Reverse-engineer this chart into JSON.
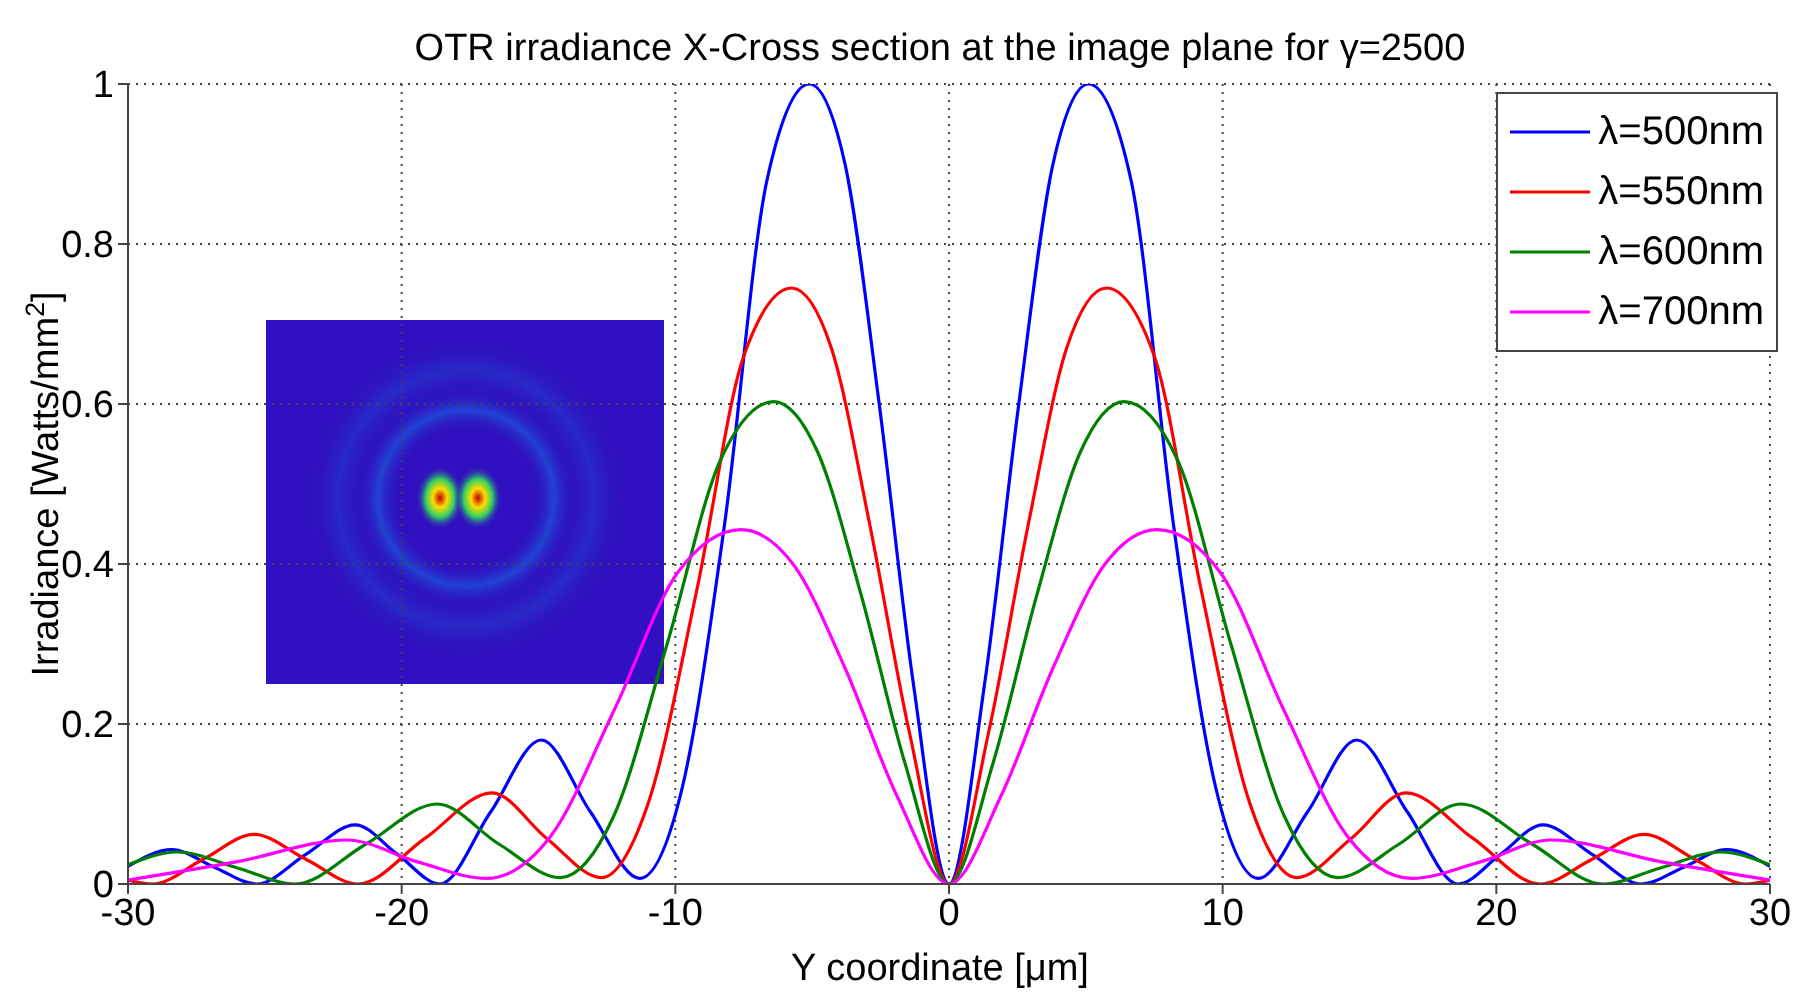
{
  "chart_data": {
    "type": "line",
    "title": "OTR irradiance X-Cross section at the image plane for γ=2500",
    "xlabel": "Y coordinate [μm]",
    "ylabel": "Irradiance [Watts/mm$^{2}$]",
    "xlim": [
      -30,
      30
    ],
    "xticks": [
      -30,
      -20,
      -10,
      0,
      10,
      20,
      30
    ],
    "ylim": [
      0,
      1
    ],
    "yticks": [
      0,
      0.2,
      0.4,
      0.6,
      0.8,
      1
    ],
    "grid": true,
    "legend": "top right",
    "marker": "none",
    "line_style": "solid",
    "series": [
      {
        "name": "λ=500nm",
        "color": "#0000ff",
        "x": [
          -30,
          -28.4,
          -26.85,
          -25.3,
          -23.5,
          -21.7,
          -20.15,
          -18.6,
          -16.75,
          -14.9,
          -13.1,
          -11.3,
          -9.75,
          -8.2,
          -6.65,
          -5.1,
          -3.8,
          -2.55,
          -1.3,
          0,
          1.3,
          2.55,
          3.8,
          5.1,
          6.65,
          8.2,
          9.75,
          11.3,
          13.1,
          14.9,
          16.75,
          18.6,
          20.15,
          21.7,
          23.5,
          25.3,
          26.85,
          28.4,
          30
        ],
        "values": [
          0.022,
          0.043,
          0.021,
          0,
          0.037,
          0.074,
          0.037,
          0,
          0.09,
          0.18,
          0.09,
          0.007,
          0.12,
          0.45,
          0.88,
          1,
          0.9,
          0.6,
          0.25,
          0,
          0.25,
          0.6,
          0.9,
          1,
          0.88,
          0.45,
          0.12,
          0.007,
          0.09,
          0.18,
          0.09,
          0,
          0.037,
          0.074,
          0.037,
          0,
          0.021,
          0.043,
          0.022
        ]
      },
      {
        "name": "λ=550nm",
        "color": "#ff0000",
        "x": [
          -30,
          -29.1,
          -27.25,
          -25.4,
          -23.5,
          -21.6,
          -19.15,
          -16.7,
          -14.7,
          -12.7,
          -11,
          -9.2,
          -7.5,
          -5.75,
          -4.3,
          -2.9,
          -1.45,
          0,
          1.45,
          2.9,
          4.3,
          5.75,
          7.5,
          9.2,
          11,
          12.7,
          14.7,
          16.7,
          19.15,
          21.6,
          23.5,
          25.4,
          27.25,
          29.1,
          30
        ],
        "values": [
          0.005,
          0,
          0.031,
          0.062,
          0.031,
          0,
          0.057,
          0.114,
          0.057,
          0.008,
          0.1,
          0.37,
          0.66,
          0.745,
          0.67,
          0.45,
          0.19,
          0,
          0.19,
          0.45,
          0.67,
          0.745,
          0.66,
          0.37,
          0.1,
          0.008,
          0.057,
          0.114,
          0.057,
          0,
          0.031,
          0.062,
          0.031,
          0,
          0.005
        ]
      },
      {
        "name": "λ=600nm",
        "color": "#008000",
        "x": [
          -30,
          -28.2,
          -26,
          -23.9,
          -21.3,
          -18.7,
          -16.45,
          -14.2,
          -12.25,
          -10.3,
          -8.35,
          -6.4,
          -4.8,
          -3.2,
          -1.6,
          0,
          1.6,
          3.2,
          4.8,
          6.4,
          8.35,
          10.3,
          12.25,
          14.2,
          16.45,
          18.7,
          21.3,
          23.9,
          26,
          28.2,
          30
        ],
        "values": [
          0.024,
          0.04,
          0.02,
          0,
          0.05,
          0.1,
          0.05,
          0.008,
          0.085,
          0.3,
          0.53,
          0.603,
          0.54,
          0.36,
          0.15,
          0,
          0.15,
          0.36,
          0.54,
          0.603,
          0.53,
          0.3,
          0.085,
          0.008,
          0.05,
          0.1,
          0.05,
          0,
          0.02,
          0.04,
          0.024
        ]
      },
      {
        "name": "λ=700nm",
        "color": "#ff00ff",
        "x": [
          -30,
          -26,
          -22,
          -19.45,
          -16.9,
          -14.55,
          -12.2,
          -9.9,
          -7.6,
          -5.7,
          -3.8,
          -1.9,
          0,
          1.9,
          3.8,
          5.7,
          7.6,
          9.9,
          12.2,
          14.55,
          16.9,
          19.45,
          22,
          26,
          30
        ],
        "values": [
          0.005,
          0.028,
          0.055,
          0.028,
          0.007,
          0.06,
          0.22,
          0.39,
          0.443,
          0.4,
          0.27,
          0.11,
          0,
          0.11,
          0.27,
          0.4,
          0.443,
          0.39,
          0.22,
          0.06,
          0.007,
          0.028,
          0.055,
          0.028,
          0.005
        ]
      }
    ]
  }
}
